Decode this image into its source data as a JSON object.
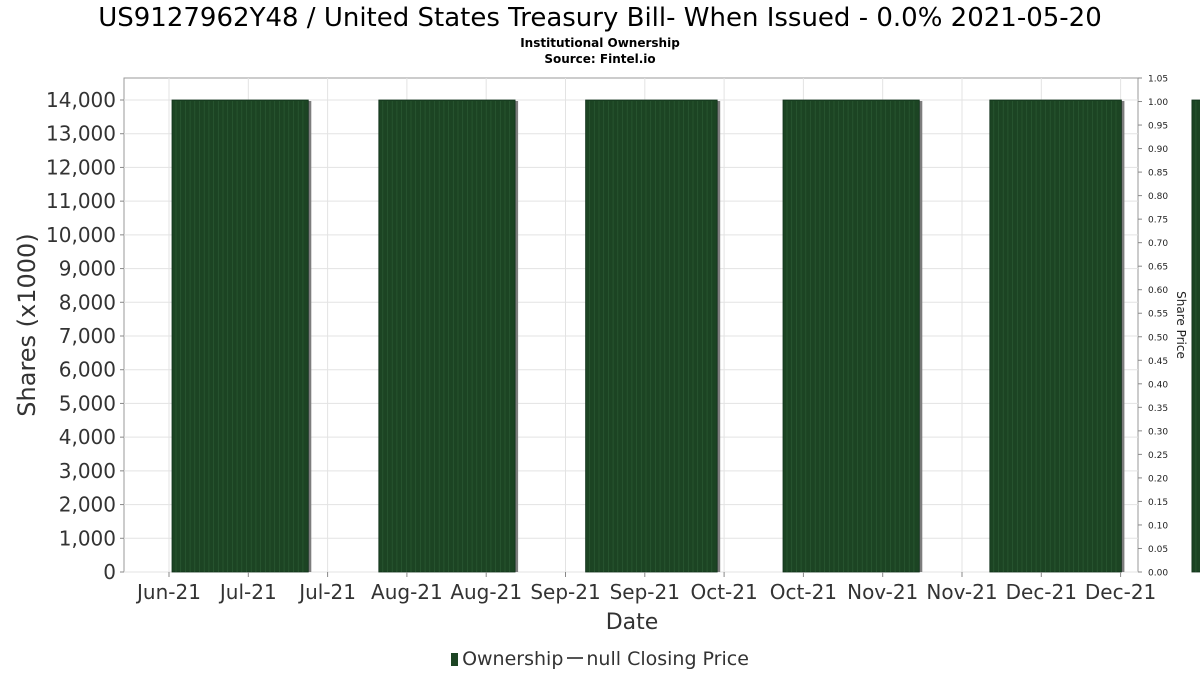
{
  "chart_data": {
    "type": "bar",
    "title": "US9127962Y48 / United States Treasury Bill- When Issued - 0.0% 2021-05-20",
    "subtitle": "Institutional Ownership",
    "source": "Source: Fintel.io",
    "xlabel": "Date",
    "ylabel": "Shares (x1000)",
    "y2label": "Share Price",
    "ylim": [
      0,
      14000
    ],
    "y2lim": [
      0,
      1.05
    ],
    "grid": true,
    "legend_position": "bottom",
    "y_ticks": [
      "0",
      "1,000",
      "2,000",
      "3,000",
      "4,000",
      "5,000",
      "6,000",
      "7,000",
      "8,000",
      "9,000",
      "10,000",
      "11,000",
      "12,000",
      "13,000",
      "14,000"
    ],
    "y2_ticks": [
      "0.00",
      "0.05",
      "0.10",
      "0.15",
      "0.20",
      "0.25",
      "0.30",
      "0.35",
      "0.40",
      "0.45",
      "0.50",
      "0.55",
      "0.60",
      "0.65",
      "0.70",
      "0.75",
      "0.80",
      "0.85",
      "0.90",
      "0.95",
      "1.00",
      "1.05"
    ],
    "x_ticks": [
      "Jun-21",
      "Jul-21",
      "Jul-21",
      "Aug-21",
      "Aug-21",
      "Sep-21",
      "Sep-21",
      "Oct-21",
      "Oct-21",
      "Nov-21",
      "Nov-21",
      "Dec-21",
      "Dec-21"
    ],
    "series": [
      {
        "name": "Ownership",
        "color": "#1c4423",
        "values": [
          {
            "start": "2021-06-01",
            "end": "2021-06-30",
            "value": 14000
          },
          {
            "start": "2021-07-15",
            "end": "2021-08-13",
            "value": 14000
          },
          {
            "start": "2021-08-28",
            "end": "2021-09-25",
            "value": 14000
          },
          {
            "start": "2021-10-09",
            "end": "2021-11-07",
            "value": 14000
          },
          {
            "start": "2021-11-22",
            "end": "2021-12-20",
            "value": 14000
          },
          {
            "start": "2022-01-04",
            "end": "2022-02-02",
            "value": 14000
          }
        ]
      }
    ],
    "legend": [
      "Ownership",
      "null Closing Price"
    ]
  }
}
